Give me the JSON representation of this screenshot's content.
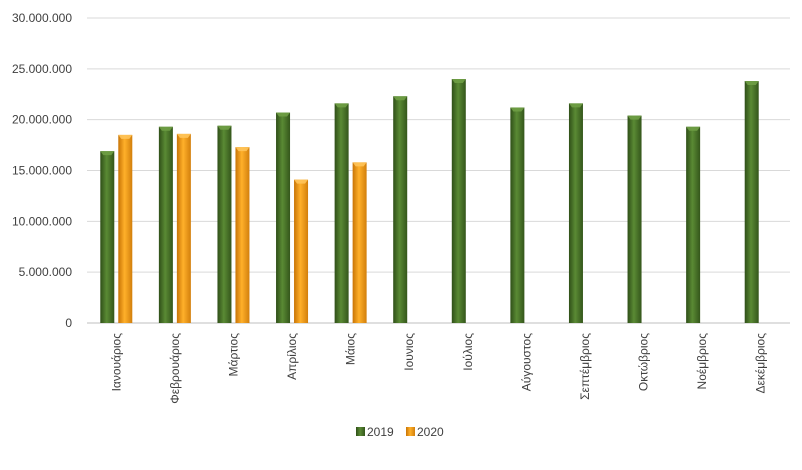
{
  "chart_data": {
    "type": "bar",
    "categories": [
      "Ιανουάριος",
      "Φεβρουάριος",
      "Μάρτιος",
      "Απρίλιος",
      "Μάιος",
      "Ιουνιος",
      "Ιούλιος",
      "Αύγουστος",
      "Σεπτέμβριος",
      "Οκτώβριος",
      "Νοέμβριος",
      "Δεκέμβριος"
    ],
    "series": [
      {
        "name": "2019",
        "color": "#4e7a2a",
        "values": [
          16900000,
          19300000,
          19400000,
          20700000,
          21600000,
          22300000,
          24000000,
          21200000,
          21600000,
          20400000,
          19300000,
          23800000
        ]
      },
      {
        "name": "2020",
        "color": "#f0a020",
        "values": [
          18500000,
          18600000,
          17300000,
          14100000,
          15800000,
          null,
          null,
          null,
          null,
          null,
          null,
          null
        ]
      }
    ],
    "ylim": [
      0,
      30000000
    ],
    "yticks": [
      0,
      5000000,
      10000000,
      15000000,
      20000000,
      25000000,
      30000000
    ],
    "ytick_labels": [
      "0",
      "5.000.000",
      "10.000.000",
      "15.000.000",
      "20.000.000",
      "25.000.000",
      "30.000.000"
    ],
    "grid": true,
    "legend_position": "bottom",
    "title": "",
    "xlabel": "",
    "ylabel": ""
  }
}
